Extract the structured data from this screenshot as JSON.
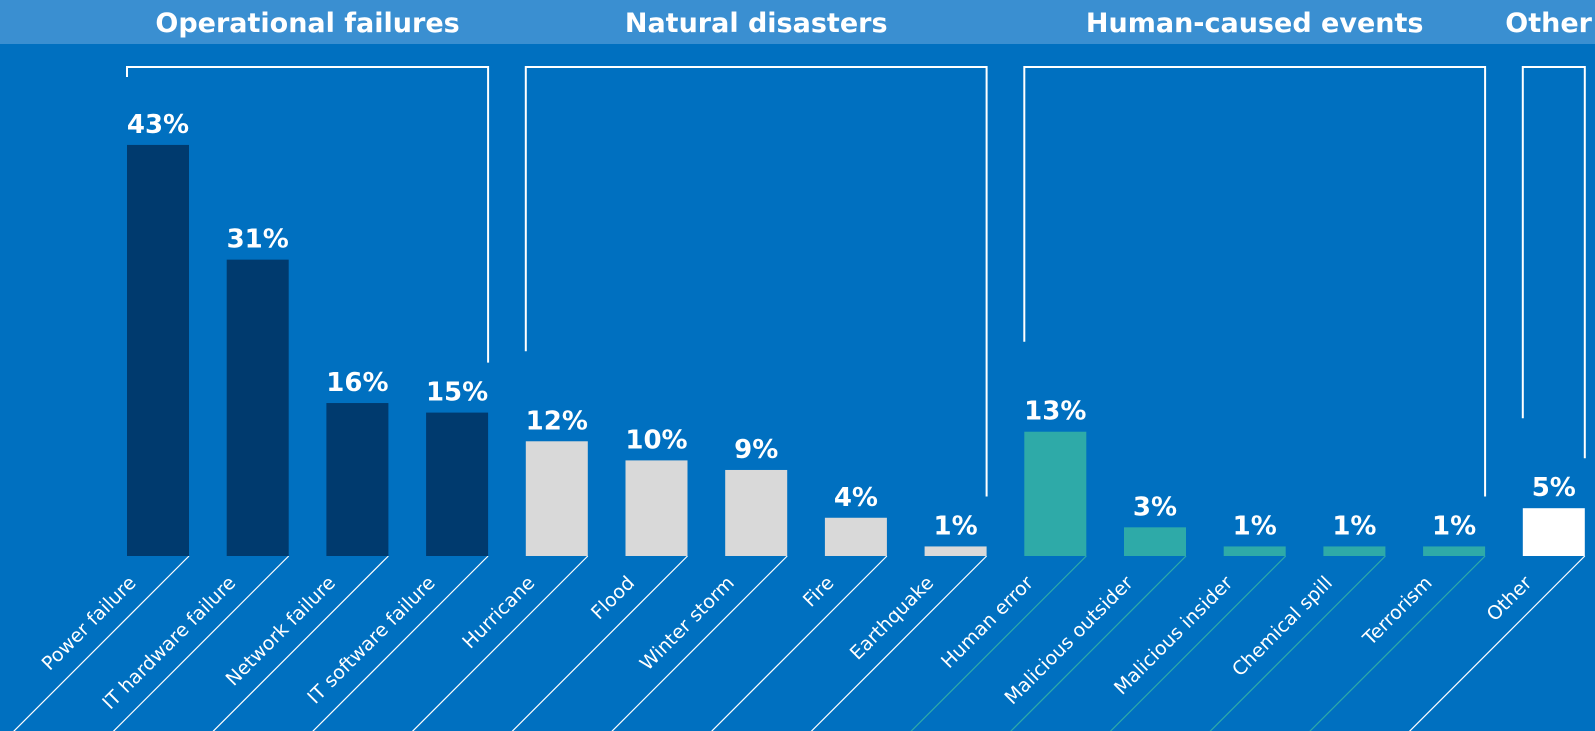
{
  "colors": {
    "background": "#0070c0",
    "header_band": "#3a8fd1",
    "operational": "#003a6e",
    "natural": "#d9d9d9",
    "human": "#2eaaa8",
    "other": "#ffffff",
    "bracket": "#ffffff"
  },
  "chart_data": {
    "type": "bar",
    "ylim": [
      0,
      45
    ],
    "grid": false,
    "groups": [
      {
        "name": "Operational failures",
        "color": "operational",
        "categories": [
          "Power failure",
          "IT hardware failure",
          "Network failure",
          "IT software failure"
        ],
        "values": [
          43,
          31,
          16,
          15
        ]
      },
      {
        "name": "Natural disasters",
        "color": "natural",
        "categories": [
          "Hurricane",
          "Flood",
          "Winter storm",
          "Fire",
          "Earthquake"
        ],
        "values": [
          12,
          10,
          9,
          4,
          1
        ]
      },
      {
        "name": "Human-caused events",
        "color": "human",
        "categories": [
          "Human error",
          "Malicious outsider",
          "Malicious insider",
          "Chemical spill",
          "Terrorism"
        ],
        "values": [
          13,
          3,
          1,
          1,
          1
        ]
      },
      {
        "name": "Other",
        "color": "other",
        "categories": [
          "Other"
        ],
        "values": [
          5
        ]
      }
    ],
    "value_suffix": "%"
  }
}
